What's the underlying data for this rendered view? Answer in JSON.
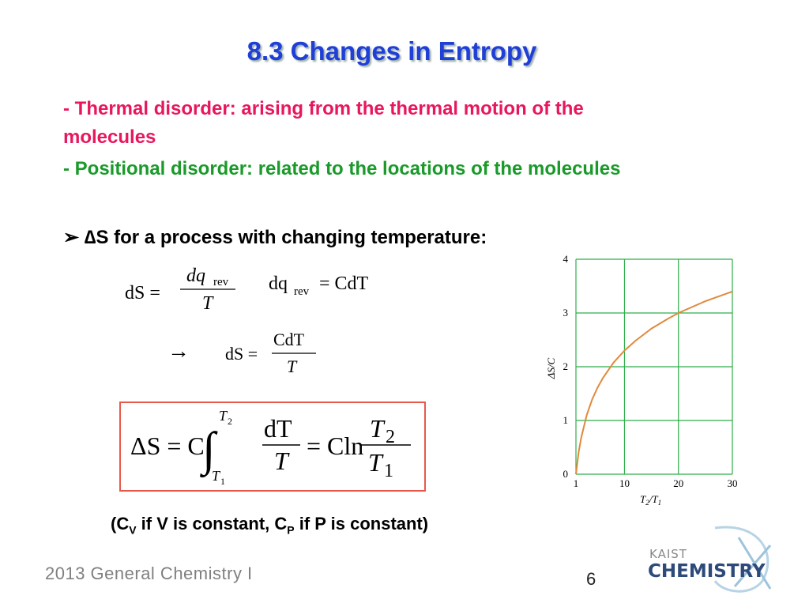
{
  "title": "8.3 Changes in Entropy",
  "bullets": [
    {
      "text": "- Thermal disorder: arising from the thermal motion of the molecules",
      "color": "#e8175d"
    },
    {
      "text": "- Positional disorder: related to the locations of the molecules",
      "color": "#1a9a2a"
    }
  ],
  "subheading": {
    "marker": "➢",
    "text": "∆S for a process with changing temperature:"
  },
  "equations": {
    "eq1": {
      "lhs": "dS =",
      "num": "dq",
      "num_sub": "rev",
      "den": "T"
    },
    "eq2": {
      "lhs": "dq",
      "sub": "rev",
      "rhs": "= CdT"
    },
    "arrow": "→",
    "eq3": {
      "lhs": "dS =",
      "num": "CdT",
      "den": "T"
    },
    "eq4": {
      "lhs": "ΔS = C",
      "integral": "∫",
      "upper": "T",
      "upper_sub": "2",
      "lower": "T",
      "lower_sub": "1",
      "num": "dT",
      "den": "T",
      "mid": "= Cln",
      "num2": "T",
      "num2_sub": "2",
      "den2": "T",
      "den2_sub": "1"
    }
  },
  "note": {
    "open": "(C",
    "sub1": "V",
    "mid": " if V is constant, C",
    "sub2": "P",
    "close": " if P is constant)"
  },
  "footer": "2013 General Chemistry I",
  "page_number": "6",
  "logo": {
    "top": "KAIST",
    "bottom": "CHEMISTRY"
  },
  "chart_data": {
    "type": "line",
    "x_label": {
      "t": "T",
      "s1": "2",
      "mid": "/T",
      "s2": "1"
    },
    "y_label": "ΔS/C",
    "x": [
      1,
      1.5,
      2,
      3,
      4,
      5,
      6,
      8,
      10,
      12,
      15,
      18,
      20,
      25,
      30
    ],
    "series": [
      {
        "color": "#e08a3c",
        "values": [
          0,
          0.41,
          0.69,
          1.1,
          1.39,
          1.61,
          1.79,
          2.08,
          2.3,
          2.48,
          2.71,
          2.89,
          3.0,
          3.22,
          3.4
        ]
      }
    ],
    "xlim": [
      1,
      30
    ],
    "ylim": [
      0,
      4
    ],
    "xticks": [
      1,
      10,
      20,
      30
    ],
    "yticks": [
      0,
      1,
      2,
      3,
      4
    ],
    "grid": true,
    "grid_color": "#2fae4a"
  }
}
